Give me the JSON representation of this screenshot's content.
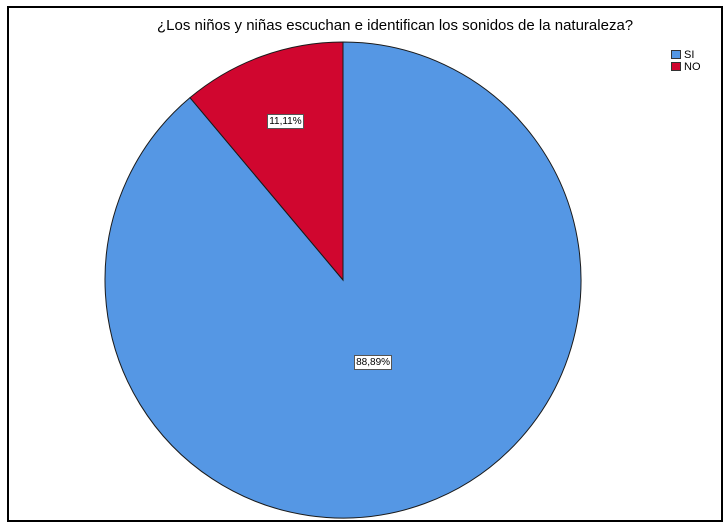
{
  "chart_data": {
    "type": "pie",
    "title": "¿Los niños y niñas escuchan e identifican los sonidos de la naturaleza?",
    "slices": [
      {
        "name": "SI",
        "value": 88.89,
        "label": "88,89%",
        "color": "#5597e4"
      },
      {
        "name": "NO",
        "value": 11.11,
        "label": "11,11%",
        "color": "#d0062f"
      }
    ],
    "legend_position": "top-right"
  }
}
